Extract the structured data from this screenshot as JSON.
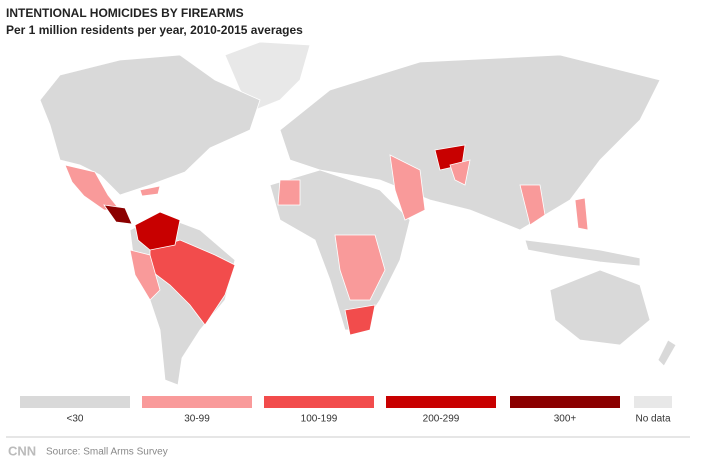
{
  "header": {
    "title": "INTENTIONAL HOMICIDES BY FIREARMS",
    "subtitle": "Per 1 million residents per year, 2010-2015 averages"
  },
  "legend": {
    "items": [
      {
        "label": "<30",
        "color": "#d9d9d9"
      },
      {
        "label": "30-99",
        "color": "#f99a9a"
      },
      {
        "label": "100-199",
        "color": "#f24c4c"
      },
      {
        "label": "200-299",
        "color": "#c80000"
      },
      {
        "label": "300+",
        "color": "#8b0000"
      },
      {
        "label": "No data",
        "color": "#e8e8e8"
      }
    ]
  },
  "footer": {
    "logo": "CNN",
    "source": "Source: Small Arms Survey"
  }
}
